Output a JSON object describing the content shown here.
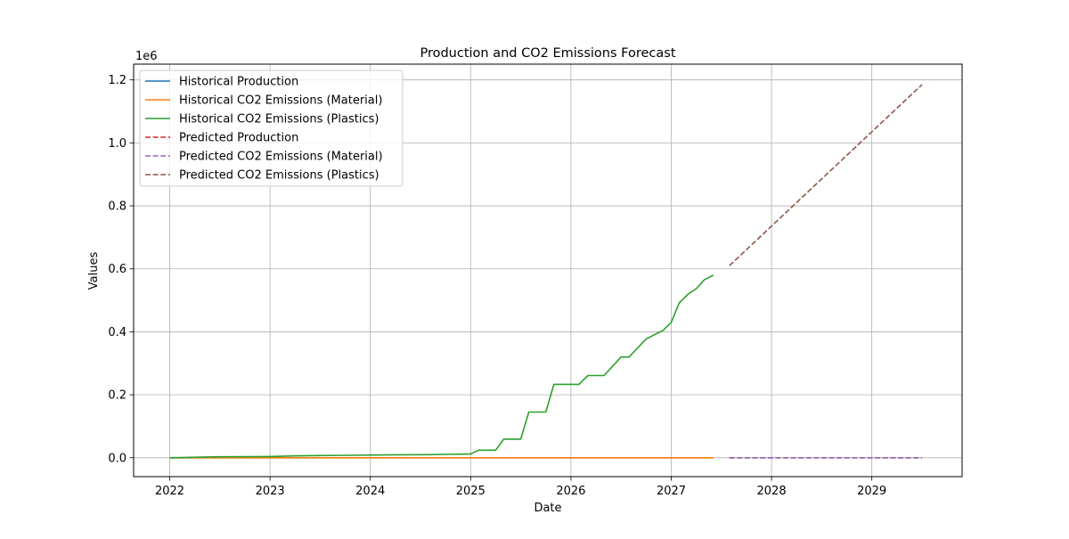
{
  "chart_data": {
    "type": "line",
    "title": "Production and CO2 Emissions Forecast",
    "xlabel": "Date",
    "ylabel": "Values",
    "y_scale_label": "1e6",
    "xlim": [
      2021.64,
      2029.9
    ],
    "ylim": [
      -0.06,
      1.25
    ],
    "x_ticks": [
      2022,
      2023,
      2024,
      2025,
      2026,
      2027,
      2028,
      2029
    ],
    "x_tick_labels": [
      "2022",
      "2023",
      "2024",
      "2025",
      "2026",
      "2027",
      "2028",
      "2029"
    ],
    "y_ticks": [
      0.0,
      0.2,
      0.4,
      0.6,
      0.8,
      1.0,
      1.2
    ],
    "y_tick_labels": [
      "0.0",
      "0.2",
      "0.4",
      "0.6",
      "0.8",
      "1.0",
      "1.2"
    ],
    "grid": true,
    "legend_position": "top-left",
    "series": [
      {
        "name": "Historical Production",
        "color": "#1f77b4",
        "dash": "solid",
        "x": [
          2022.0,
          2027.42
        ],
        "y": [
          0.0,
          0.0
        ]
      },
      {
        "name": "Historical CO2 Emissions (Material)",
        "color": "#ff7f0e",
        "dash": "solid",
        "x": [
          2022.0,
          2027.42
        ],
        "y": [
          0.0,
          0.0
        ]
      },
      {
        "name": "Historical CO2 Emissions (Plastics)",
        "color": "#2ca02c",
        "dash": "solid",
        "x": [
          2022.0,
          2022.17,
          2022.33,
          2022.5,
          2023.0,
          2023.25,
          2023.5,
          2023.83,
          2024.17,
          2024.58,
          2025.0,
          2025.08,
          2025.25,
          2025.33,
          2025.5,
          2025.58,
          2025.75,
          2025.83,
          2026.08,
          2026.17,
          2026.33,
          2026.5,
          2026.58,
          2026.75,
          2026.92,
          2027.0,
          2027.08,
          2027.17,
          2027.25,
          2027.33,
          2027.42
        ],
        "y": [
          0.0,
          0.001,
          0.002,
          0.003,
          0.004,
          0.006,
          0.007,
          0.008,
          0.009,
          0.01,
          0.012,
          0.024,
          0.024,
          0.059,
          0.059,
          0.145,
          0.145,
          0.233,
          0.233,
          0.261,
          0.261,
          0.32,
          0.32,
          0.377,
          0.405,
          0.43,
          0.492,
          0.52,
          0.537,
          0.565,
          0.58
        ]
      },
      {
        "name": "Predicted Production",
        "color": "#d62728",
        "dash": "dashed",
        "x": [
          2027.58,
          2029.5
        ],
        "y": [
          0.0,
          0.0
        ]
      },
      {
        "name": "Predicted CO2 Emissions (Material)",
        "color": "#9467bd",
        "dash": "dashed",
        "x": [
          2027.58,
          2029.5
        ],
        "y": [
          0.0,
          0.0
        ]
      },
      {
        "name": "Predicted CO2 Emissions (Plastics)",
        "color": "#8c564b",
        "dash": "dashed",
        "x": [
          2027.58,
          2029.5
        ],
        "y": [
          0.61,
          1.185
        ]
      }
    ]
  }
}
